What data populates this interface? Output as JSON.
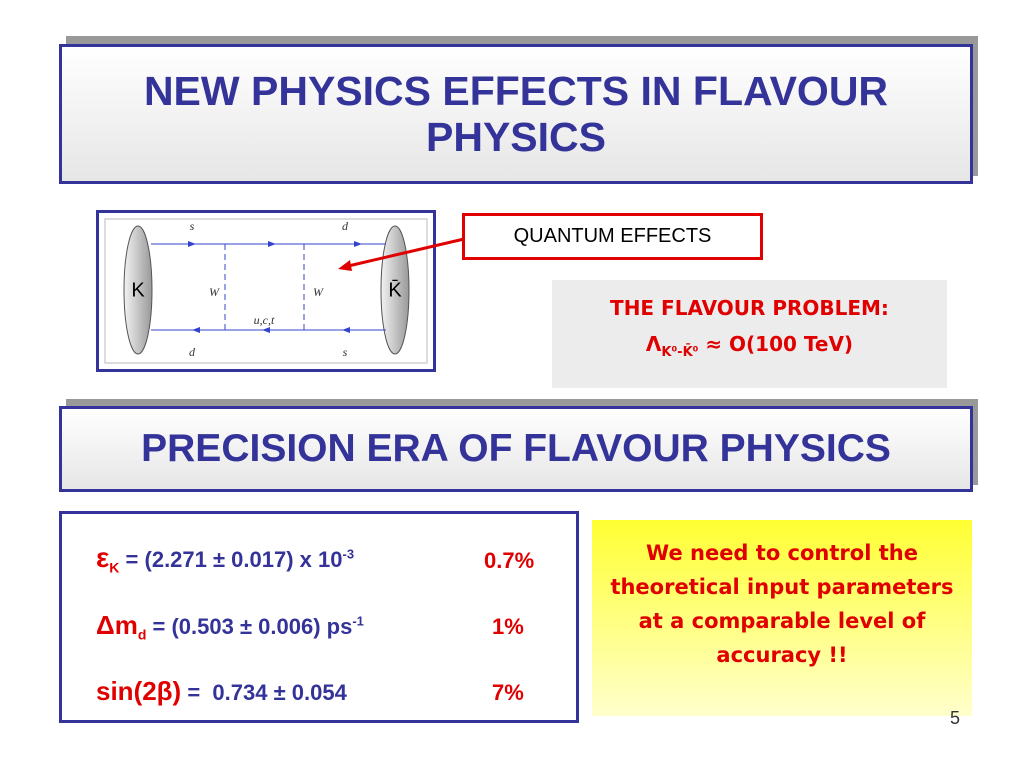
{
  "title": "NEW PHYSICS EFFECTS IN FLAVOUR PHYSICS",
  "diagram": {
    "top_left": "s",
    "top_right": "d",
    "w_left": "W",
    "w_right": "W",
    "internal": "u,c,t",
    "bottom_left": "d",
    "bottom_right": "s",
    "left_meson": "K",
    "right_meson": "K̄"
  },
  "callout": "QUANTUM EFFECTS",
  "flavour_problem": {
    "heading": "THE FLAVOUR PROBLEM:",
    "symbol": "Λ",
    "subscript": "K⁰-K̄⁰",
    "rhs": "≈ O(100 TeV)"
  },
  "section_title": "PRECISION ERA OF FLAVOUR PHYSICS",
  "measurements": [
    {
      "symbol": "ε",
      "subscript": "K",
      "value": "= (2.271 ± 0.017) x 10",
      "exponent": "-3",
      "precision": "0.7%"
    },
    {
      "symbol": "Δm",
      "subscript": "d",
      "value": "= (0.503 ± 0.006) ps",
      "exponent": "-1",
      "precision": "1%"
    },
    {
      "symbol": "sin(2β)",
      "value": "=  0.734 ± 0.054",
      "precision": "7%"
    }
  ],
  "note": "We need to control the theoretical input parameters at a comparable level of accuracy !!",
  "page_number": "5"
}
